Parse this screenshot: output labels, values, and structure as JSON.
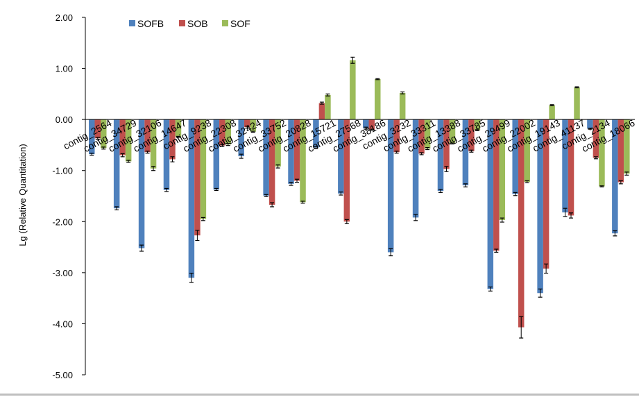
{
  "chart_data": {
    "type": "bar",
    "ylabel": "Lg (Relative Quantitation)",
    "ylim": [
      -5,
      2
    ],
    "yticks": [
      "2.00",
      "1.00",
      "0.00",
      "-1.00",
      "-2.00",
      "-3.00",
      "-4.00",
      "-5.00"
    ],
    "grid": false,
    "legend_position": "top-left",
    "categories": [
      "contig_2564",
      "contig_34729",
      "contig_32106",
      "contig_14647",
      "contig_9238",
      "contig_22308",
      "contig_32424",
      "contig_33752",
      "contig_20828",
      "contig_15721",
      "contig_27568",
      "contig_38186",
      "contig_3232",
      "contig_33311",
      "contig_13388",
      "contig_33785",
      "contig_29499",
      "contig_22002",
      "contig_19143",
      "contig_41137",
      "contig_2134",
      "contig_18066"
    ],
    "series": [
      {
        "name": "SOFB",
        "color": "#4f81bd",
        "values": [
          -0.68,
          -1.74,
          -2.52,
          -1.38,
          -3.1,
          -1.37,
          -0.72,
          -1.49,
          -1.26,
          -0.55,
          -1.45,
          -0.17,
          -2.6,
          -1.92,
          -1.4,
          -1.29,
          -3.32,
          -1.46,
          -3.4,
          -1.82,
          -0.18,
          -2.23
        ],
        "errors": [
          0.02,
          0.03,
          0.06,
          0.03,
          0.09,
          0.02,
          0.04,
          0.02,
          0.03,
          0.02,
          0.03,
          0.02,
          0.07,
          0.06,
          0.03,
          0.03,
          0.04,
          0.03,
          0.08,
          0.08,
          0.01,
          0.05
        ]
      },
      {
        "name": "SOB",
        "color": "#c0504d",
        "values": [
          -0.37,
          -0.7,
          -0.64,
          -0.78,
          -2.27,
          -0.51,
          -0.15,
          -1.67,
          -1.2,
          0.32,
          -2.0,
          -0.2,
          -0.64,
          -0.67,
          -0.97,
          -0.62,
          -2.57,
          -4.07,
          -2.92,
          -1.88,
          -0.75,
          -1.23
        ],
        "errors": [
          0.02,
          0.03,
          0.02,
          0.05,
          0.1,
          0.02,
          0.02,
          0.04,
          0.03,
          0.02,
          0.04,
          0.01,
          0.02,
          0.02,
          0.05,
          0.02,
          0.03,
          0.21,
          0.09,
          0.05,
          0.02,
          0.03
        ]
      },
      {
        "name": "SOF",
        "color": "#9bbb59",
        "values": [
          -0.56,
          -0.82,
          -0.96,
          -0.34,
          -1.95,
          -0.49,
          -0.24,
          -0.92,
          -1.62,
          0.48,
          1.16,
          0.79,
          0.52,
          -0.57,
          -0.47,
          -0.21,
          -1.97,
          -1.22,
          0.28,
          0.63,
          -1.31,
          -1.06
        ],
        "errors": [
          0.02,
          0.02,
          0.04,
          0.01,
          0.03,
          0.02,
          0.01,
          0.03,
          0.02,
          0.02,
          0.06,
          0.01,
          0.02,
          0.02,
          0.01,
          0.01,
          0.04,
          0.02,
          0.01,
          0.01,
          0.01,
          0.03
        ]
      }
    ]
  }
}
